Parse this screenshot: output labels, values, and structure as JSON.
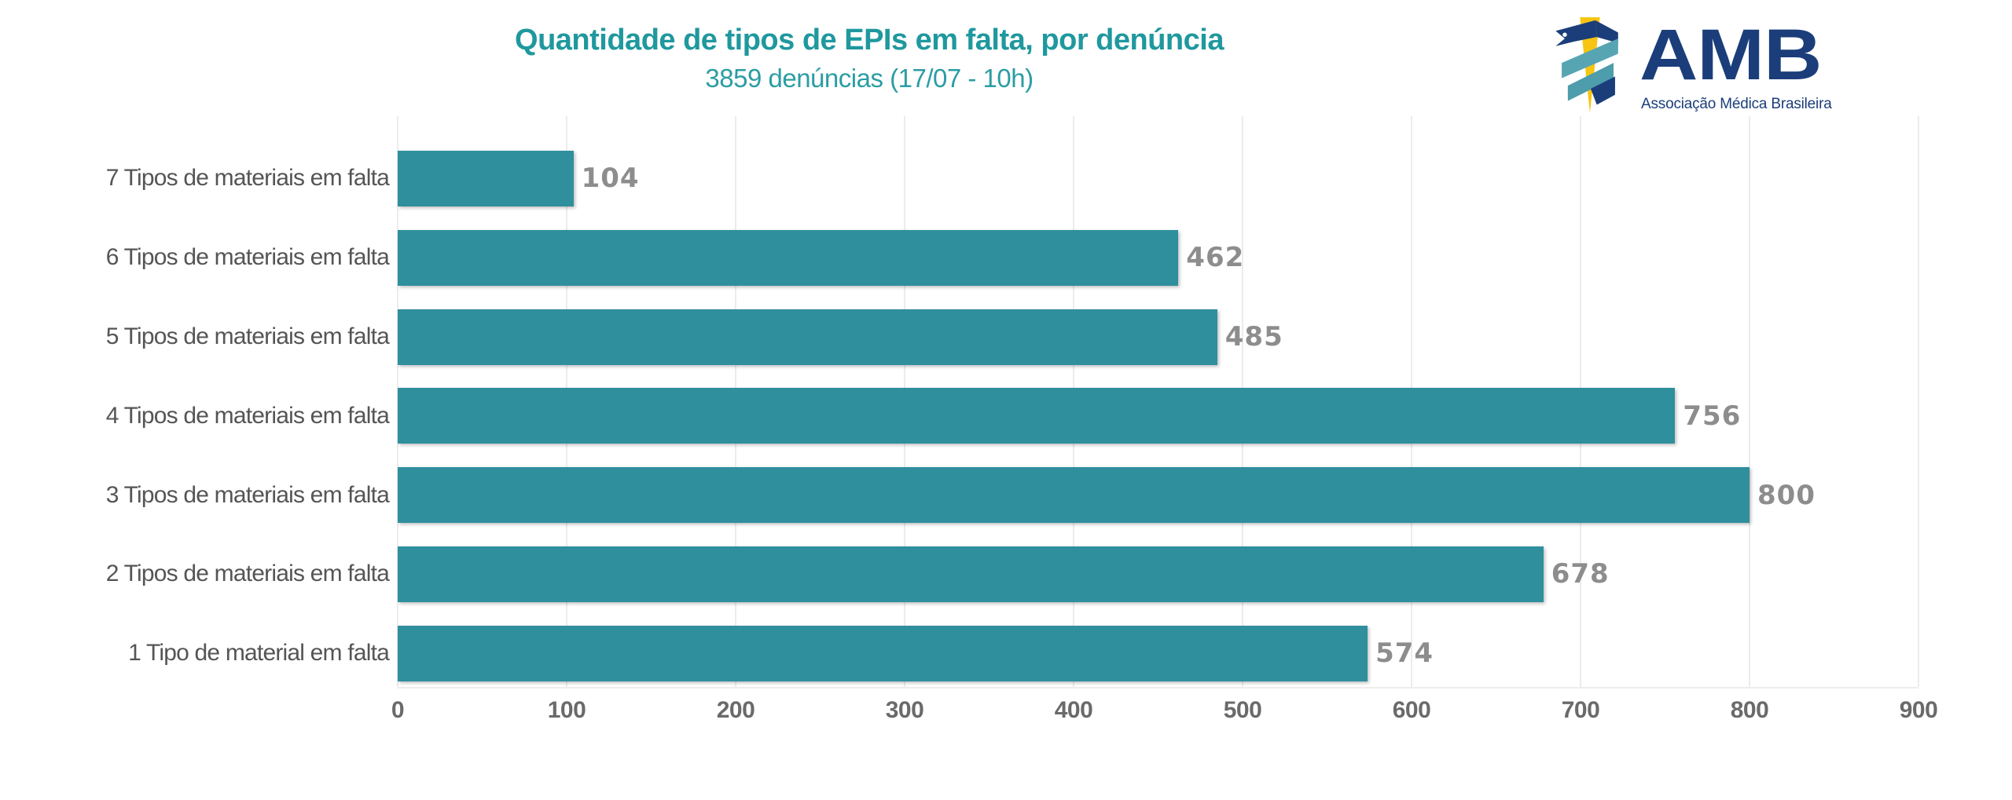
{
  "header": {
    "title": "Quantidade de tipos de EPIs em falta, por denúncia",
    "subtitle": "3859 denúncias (17/07 - 10h)"
  },
  "logo": {
    "acronym": "AMB",
    "caption": "Associação Médica Brasileira",
    "colors": {
      "navy": "#1b3e7a",
      "teal": "#57a5b3",
      "teal_dark": "#4d9dac",
      "yellow": "#f7c511"
    }
  },
  "chart_data": {
    "type": "bar",
    "orientation": "horizontal",
    "title": "Quantidade de tipos de EPIs em falta, por denúncia",
    "subtitle": "3859 denúncias (17/07 - 10h)",
    "categories": [
      "7 Tipos de materiais em falta",
      "6 Tipos de materiais em falta",
      "5 Tipos de materiais em falta",
      "4 Tipos de materiais em falta",
      "3 Tipos de materiais em falta",
      "2 Tipos de materiais em falta",
      "1 Tipo de material em falta"
    ],
    "values": [
      104,
      462,
      485,
      756,
      800,
      678,
      574
    ],
    "x_ticks": [
      0,
      100,
      200,
      300,
      400,
      500,
      600,
      700,
      800,
      900
    ],
    "xlim": [
      0,
      900
    ],
    "grid": true,
    "legend": "none",
    "bar_color": "#2f8f9d",
    "value_label_color": "#8d8d8d",
    "category_label_color": "#555555",
    "tick_label_color": "#6a6a6a",
    "gridline_color": "#ececec",
    "title_color": "#1f989e"
  }
}
